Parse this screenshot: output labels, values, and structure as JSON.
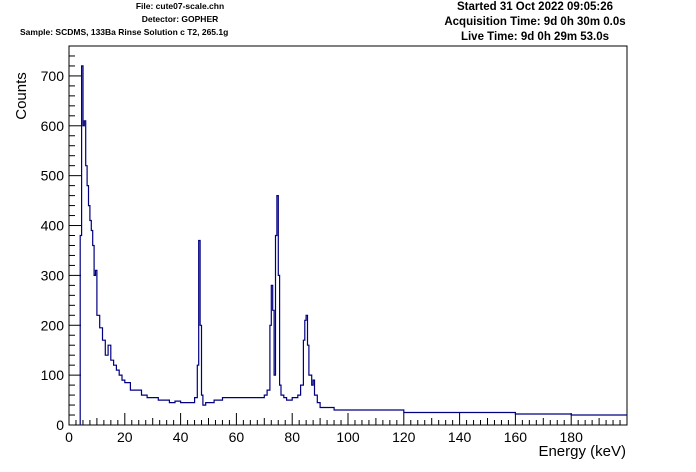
{
  "header": {
    "file": "File: cute07-scale.chn",
    "detector": "Detector: GOPHER",
    "sample": "Sample: SCDMS, 133Ba Rinse Solution c T2, 265.1g",
    "started": "Started 31 Oct 2022 09:05:26",
    "acquisition": "Acquisition Time: 9d 0h 30m 0.0s",
    "live": "Live Time: 9d 0h 29m 53.0s"
  },
  "chart_data": {
    "type": "line",
    "title": "",
    "xlabel": "Energy (keV)",
    "ylabel": "Counts",
    "xlim": [
      0,
      200
    ],
    "ylim": [
      0,
      760
    ],
    "xticks": [
      0,
      20,
      40,
      60,
      80,
      100,
      120,
      140,
      160,
      180
    ],
    "yticks": [
      0,
      100,
      200,
      300,
      400,
      500,
      600,
      700
    ],
    "grid": false,
    "color": "#000080",
    "series": [
      {
        "x": [
          4,
          4.5,
          5,
          5.5,
          6,
          6.5,
          7,
          7.5,
          8,
          8.5,
          9,
          9.5,
          10,
          11,
          12,
          13,
          14,
          15,
          16,
          17,
          18,
          19,
          20,
          22,
          24,
          26,
          28,
          30,
          32,
          34,
          36,
          38,
          40,
          42,
          44,
          45,
          46,
          46.5,
          47,
          47.5,
          48,
          49,
          50,
          52,
          55,
          60,
          65,
          70,
          71,
          72,
          72.5,
          73,
          73.5,
          74,
          74.5,
          75,
          75.5,
          76,
          77,
          78,
          80,
          82,
          83,
          84,
          84.5,
          85,
          85.5,
          86,
          87,
          87.5,
          88,
          89,
          90,
          95,
          100,
          110,
          120,
          130,
          140,
          150,
          160,
          170,
          180,
          190,
          200
        ],
        "y": [
          380,
          720,
          600,
          610,
          520,
          480,
          440,
          410,
          390,
          360,
          300,
          310,
          220,
          195,
          170,
          140,
          160,
          130,
          120,
          110,
          100,
          90,
          85,
          70,
          70,
          60,
          55,
          55,
          50,
          50,
          45,
          48,
          45,
          45,
          45,
          55,
          120,
          370,
          200,
          60,
          40,
          45,
          45,
          50,
          55,
          55,
          55,
          60,
          70,
          200,
          280,
          230,
          100,
          380,
          460,
          300,
          80,
          60,
          55,
          50,
          55,
          60,
          80,
          170,
          210,
          220,
          160,
          100,
          80,
          90,
          60,
          45,
          35,
          30,
          30,
          30,
          25,
          25,
          25,
          25,
          22,
          22,
          20,
          20,
          20
        ]
      }
    ]
  }
}
